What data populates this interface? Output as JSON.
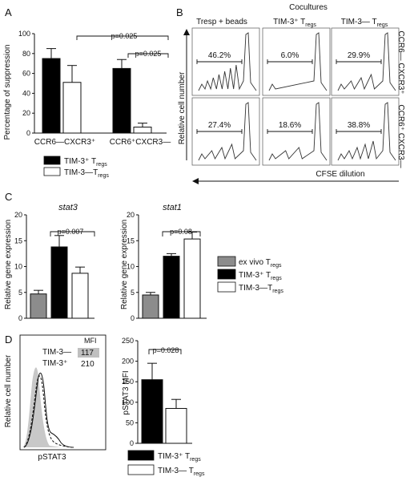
{
  "colors": {
    "black_bar": "#000000",
    "white_bar": "#ffffff",
    "grey_bar": "#8c8c8c",
    "shade": "#c8c8c8",
    "axis": "#111111"
  },
  "panels": {
    "A": {
      "letter": "A",
      "ylabel": "Percentage of suppression",
      "ytick_labels": [
        "0",
        "20",
        "40",
        "60",
        "80",
        "100"
      ],
      "p_outer": "p=0.025",
      "p_inner": "p=0.025",
      "legend": [
        {
          "main": "TIM-3⁺ T",
          "sub": "regs"
        },
        {
          "main": "TIM-3—T",
          "sub": "regs"
        }
      ]
    },
    "B": {
      "letter": "B",
      "title": "Cocultures",
      "col_headers": [
        {
          "main": "Tresp + beads",
          "sub": ""
        },
        {
          "main": "TIM-3⁺ T",
          "sub": "regs"
        },
        {
          "main": "TIM-3— T",
          "sub": "regs"
        }
      ],
      "row_labels": [
        "CCR6— CXCR3⁺",
        "CCR6⁺ CXCR3—"
      ],
      "ylabel": "Relative cell number",
      "xlabel": "CFSE dilution",
      "percentages": [
        [
          "46.2%",
          "6.0%",
          "29.9%"
        ],
        [
          "27.4%",
          "18.6%",
          "38.8%"
        ]
      ]
    },
    "C": {
      "letter": "C",
      "ylabel": "Relative gene expression",
      "ytick_labels": [
        "0",
        "5",
        "10",
        "15",
        "20"
      ],
      "left_title": "stat3",
      "right_title": "stat1",
      "p_left": "p=0.007",
      "p_right": "p=0.08",
      "legend": [
        {
          "main": "ex vivo T",
          "sub": "regs"
        },
        {
          "main": "TIM-3⁺ T",
          "sub": "regs"
        },
        {
          "main": "TIM-3—T",
          "sub": "regs"
        }
      ]
    },
    "D": {
      "letter": "D",
      "hist_ylabel": "Relative cell number",
      "hist_xlabel": "pSTAT3",
      "mfi_header": "MFI",
      "mfi_rows": [
        {
          "label": "TIM-3—",
          "value": "117"
        },
        {
          "label": "TIM-3⁺",
          "value": "210"
        }
      ],
      "bar_ylabel": "pSTAT3 MFI",
      "ytick_labels": [
        "0",
        "50",
        "100",
        "150",
        "200",
        "250"
      ],
      "p_value": "p=0.028",
      "legend": [
        {
          "main": "TIM-3⁺ T",
          "sub": "regs"
        },
        {
          "main": "TIM-3— T",
          "sub": "regs"
        }
      ]
    }
  },
  "chart_data": [
    {
      "type": "bar",
      "panel": "A",
      "ylabel": "Percentage of suppression",
      "ylim": [
        0,
        100
      ],
      "categories": [
        "CCR6—CXCR3⁺",
        "CCR6⁺CXCR3—"
      ],
      "series": [
        {
          "name": "TIM-3⁺ Tregs",
          "color": "#000000",
          "values": [
            75,
            65
          ],
          "errors": [
            10,
            9
          ]
        },
        {
          "name": "TIM-3—Tregs",
          "color": "#ffffff",
          "values": [
            51,
            6
          ],
          "errors": [
            17,
            4
          ]
        }
      ]
    },
    {
      "type": "bar",
      "panel": "C",
      "title": "stat3",
      "ylabel": "Relative gene expression",
      "ylim": [
        0,
        20
      ],
      "series": [
        {
          "name": "ex vivo Tregs",
          "color": "#8c8c8c",
          "values": [
            4.7
          ],
          "errors": [
            0.7
          ]
        },
        {
          "name": "TIM-3⁺ Tregs",
          "color": "#000000",
          "values": [
            13.8
          ],
          "errors": [
            2.2
          ]
        },
        {
          "name": "TIM-3—Tregs",
          "color": "#ffffff",
          "values": [
            8.7
          ],
          "errors": [
            1.2
          ]
        }
      ]
    },
    {
      "type": "bar",
      "panel": "C",
      "title": "stat1",
      "ylabel": "Relative gene expression",
      "ylim": [
        0,
        120
      ],
      "series": [
        {
          "name": "ex vivo Tregs",
          "color": "#8c8c8c",
          "values": [
            27
          ],
          "errors": [
            3
          ]
        },
        {
          "name": "TIM-3⁺ Tregs",
          "color": "#000000",
          "values": [
            72
          ],
          "errors": [
            3
          ]
        },
        {
          "name": "TIM-3—Tregs",
          "color": "#ffffff",
          "values": [
            92
          ],
          "errors": [
            8
          ]
        }
      ]
    },
    {
      "type": "bar",
      "panel": "D",
      "ylabel": "pSTAT3 MFI",
      "ylim": [
        0,
        250
      ],
      "series": [
        {
          "name": "TIM-3⁺ Tregs",
          "color": "#000000",
          "values": [
            155
          ],
          "errors": [
            40
          ]
        },
        {
          "name": "TIM-3— Tregs",
          "color": "#ffffff",
          "values": [
            85
          ],
          "errors": [
            22
          ]
        }
      ]
    }
  ]
}
